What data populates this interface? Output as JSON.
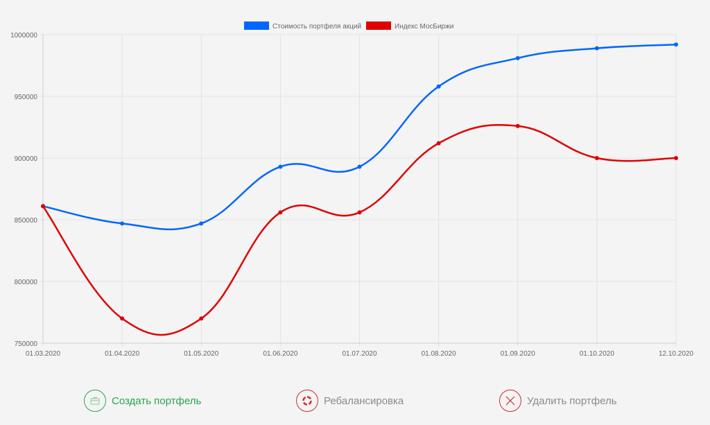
{
  "chart_data": {
    "type": "line",
    "categories": [
      "01.03.2020",
      "01.04.2020",
      "01.05.2020",
      "01.06.2020",
      "01.07.2020",
      "01.08.2020",
      "01.09.2020",
      "01.10.2020",
      "12.10.2020"
    ],
    "series": [
      {
        "name": "Стоимость портфеля акций",
        "color": "#0066ff",
        "values": [
          861000,
          847000,
          847000,
          893000,
          893000,
          958000,
          981000,
          989000,
          992000
        ]
      },
      {
        "name": "Индекс МосБиржи",
        "color": "#e00000",
        "values": [
          861000,
          770000,
          770000,
          856000,
          856000,
          912000,
          926000,
          900000,
          900000
        ]
      }
    ],
    "yticks": [
      "750000",
      "800000",
      "850000",
      "900000",
      "950000",
      "1000000"
    ],
    "ylim": [
      750000,
      1000000
    ],
    "title": "",
    "xlabel": "",
    "ylabel": "",
    "grid": true,
    "legend": "top-center"
  },
  "actions": {
    "create": "Создать портфель",
    "rebalance": "Ребалансировка",
    "delete": "Удалить портфель"
  },
  "colors": {
    "green": "#2aa34a",
    "red": "#d22a2a",
    "gray": "#8a8a8a"
  }
}
